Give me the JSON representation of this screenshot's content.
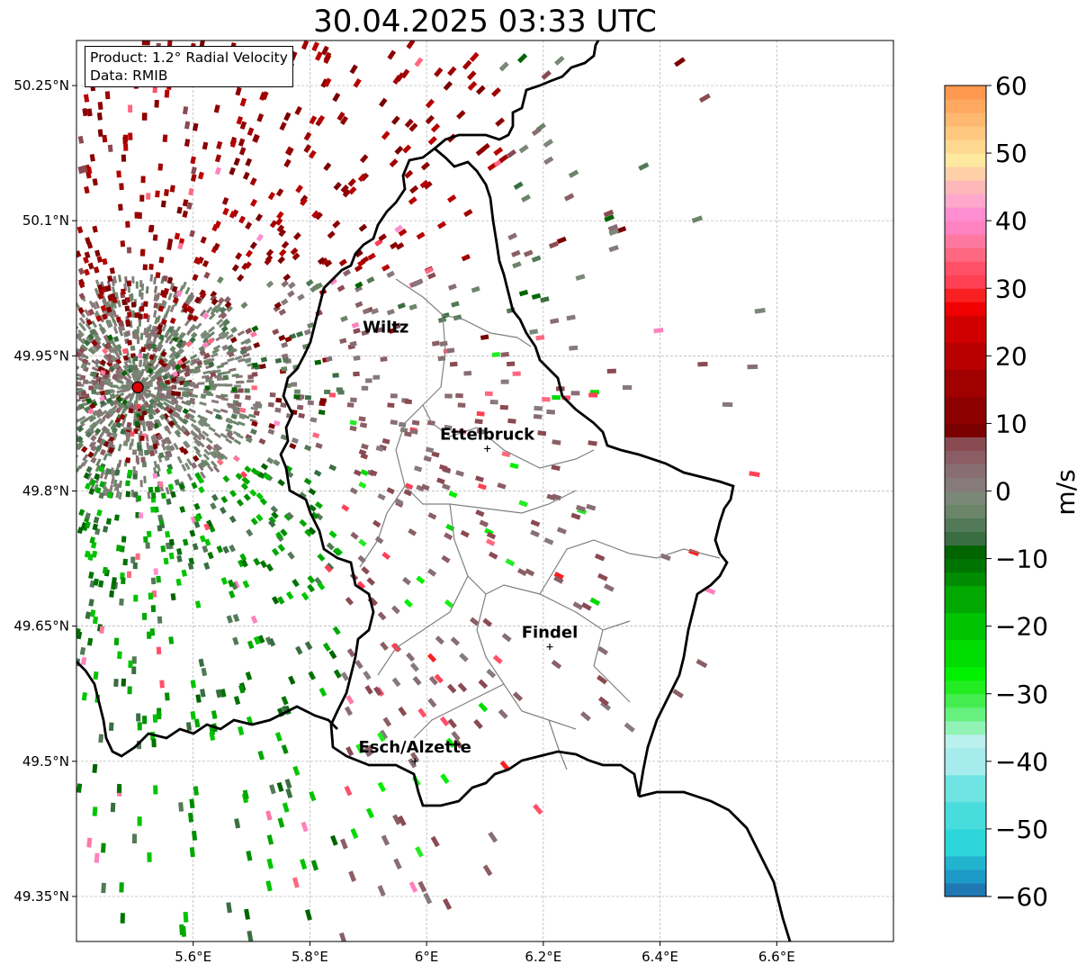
{
  "title": "30.04.2025 03:33 UTC",
  "info": {
    "product": "Product: 1.2° Radial Velocity",
    "source": "Data: RMIB"
  },
  "map": {
    "lon_range": [
      5.4,
      6.8
    ],
    "lat_range": [
      49.3,
      50.3
    ],
    "lon_ticks": [
      {
        "value": 5.6,
        "label": "5.6°E"
      },
      {
        "value": 5.8,
        "label": "5.8°E"
      },
      {
        "value": 6.0,
        "label": "6°E"
      },
      {
        "value": 6.2,
        "label": "6.2°E"
      },
      {
        "value": 6.4,
        "label": "6.4°E"
      },
      {
        "value": 6.6,
        "label": "6.6°E"
      }
    ],
    "lat_ticks": [
      {
        "value": 50.25,
        "label": "50.25°N"
      },
      {
        "value": 50.1,
        "label": "50.1°N"
      },
      {
        "value": 49.95,
        "label": "49.95°N"
      },
      {
        "value": 49.8,
        "label": "49.8°N"
      },
      {
        "value": 49.65,
        "label": "49.65°N"
      },
      {
        "value": 49.5,
        "label": "49.5°N"
      },
      {
        "value": 49.35,
        "label": "49.35°N"
      }
    ],
    "radar_site": {
      "lon": 5.505,
      "lat": 49.915
    },
    "cities": [
      {
        "name": "Wiltz",
        "lon": 5.93,
        "lat": 49.966,
        "show_marker": false
      },
      {
        "name": "Ettelbruck",
        "lon": 6.104,
        "lat": 49.847,
        "show_marker": true
      },
      {
        "name": "Findel",
        "lon": 6.211,
        "lat": 49.627,
        "show_marker": true
      },
      {
        "name": "Esch/Alzette",
        "lon": 5.98,
        "lat": 49.5,
        "show_marker": true
      }
    ]
  },
  "colorbar": {
    "label": "m/s",
    "range": [
      -60,
      60
    ],
    "ticks": [
      {
        "value": 60,
        "label": "60"
      },
      {
        "value": 50,
        "label": "50"
      },
      {
        "value": 40,
        "label": "40"
      },
      {
        "value": 30,
        "label": "30"
      },
      {
        "value": 20,
        "label": "20"
      },
      {
        "value": 10,
        "label": "10"
      },
      {
        "value": 0,
        "label": "0"
      },
      {
        "value": -10,
        "label": "−10"
      },
      {
        "value": -20,
        "label": "−20"
      },
      {
        "value": -30,
        "label": "−30"
      },
      {
        "value": -40,
        "label": "−40"
      },
      {
        "value": -50,
        "label": "−50"
      },
      {
        "value": -60,
        "label": "−60"
      }
    ],
    "stops": [
      {
        "from": -60,
        "to": -58,
        "color": "#1f77b4"
      },
      {
        "from": -58,
        "to": -56,
        "color": "#1e9ac8"
      },
      {
        "from": -56,
        "to": -54,
        "color": "#22b3cf"
      },
      {
        "from": -54,
        "to": -50,
        "color": "#2cd6da"
      },
      {
        "from": -50,
        "to": -46,
        "color": "#48dcdc"
      },
      {
        "from": -46,
        "to": -42,
        "color": "#6fe2e2"
      },
      {
        "from": -42,
        "to": -38,
        "color": "#a6ecec"
      },
      {
        "from": -38,
        "to": -36,
        "color": "#baf0ee"
      },
      {
        "from": -36,
        "to": -34,
        "color": "#90f2b4"
      },
      {
        "from": -34,
        "to": -32,
        "color": "#66f07e"
      },
      {
        "from": -32,
        "to": -30,
        "color": "#45ee50"
      },
      {
        "from": -30,
        "to": -28,
        "color": "#22ec22"
      },
      {
        "from": -28,
        "to": -26,
        "color": "#00f000"
      },
      {
        "from": -26,
        "to": -22,
        "color": "#00dc00"
      },
      {
        "from": -22,
        "to": -18,
        "color": "#00c400"
      },
      {
        "from": -18,
        "to": -14,
        "color": "#00a800"
      },
      {
        "from": -14,
        "to": -12,
        "color": "#008c00"
      },
      {
        "from": -12,
        "to": -10,
        "color": "#007400"
      },
      {
        "from": -10,
        "to": -8,
        "color": "#006400"
      },
      {
        "from": -8,
        "to": -6,
        "color": "#3a6e42"
      },
      {
        "from": -6,
        "to": -4,
        "color": "#537a58"
      },
      {
        "from": -4,
        "to": -2,
        "color": "#6a8568"
      },
      {
        "from": -2,
        "to": 0,
        "color": "#7a8878"
      },
      {
        "from": 0,
        "to": 2,
        "color": "#877a7a"
      },
      {
        "from": 2,
        "to": 4,
        "color": "#886e72"
      },
      {
        "from": 4,
        "to": 6,
        "color": "#8a5e64"
      },
      {
        "from": 6,
        "to": 8,
        "color": "#8a4a52"
      },
      {
        "from": 8,
        "to": 10,
        "color": "#7a0000"
      },
      {
        "from": 10,
        "to": 14,
        "color": "#8c0000"
      },
      {
        "from": 14,
        "to": 18,
        "color": "#a00000"
      },
      {
        "from": 18,
        "to": 22,
        "color": "#b80000"
      },
      {
        "from": 22,
        "to": 26,
        "color": "#d00000"
      },
      {
        "from": 26,
        "to": 28,
        "color": "#f00000"
      },
      {
        "from": 28,
        "to": 30,
        "color": "#f82020"
      },
      {
        "from": 30,
        "to": 32,
        "color": "#ff4055"
      },
      {
        "from": 32,
        "to": 34,
        "color": "#ff5068"
      },
      {
        "from": 34,
        "to": 36,
        "color": "#ff6880"
      },
      {
        "from": 36,
        "to": 38,
        "color": "#ff78a0"
      },
      {
        "from": 38,
        "to": 40,
        "color": "#ff82c0"
      },
      {
        "from": 40,
        "to": 42,
        "color": "#ff8ed0"
      },
      {
        "from": 42,
        "to": 44,
        "color": "#ffa8cc"
      },
      {
        "from": 44,
        "to": 46,
        "color": "#ffb8b8"
      },
      {
        "from": 46,
        "to": 48,
        "color": "#ffd0a8"
      },
      {
        "from": 48,
        "to": 50,
        "color": "#ffe8a0"
      },
      {
        "from": 50,
        "to": 52,
        "color": "#ffd890"
      },
      {
        "from": 52,
        "to": 54,
        "color": "#ffc880"
      },
      {
        "from": 54,
        "to": 56,
        "color": "#ffb870"
      },
      {
        "from": 56,
        "to": 58,
        "color": "#ffa860"
      },
      {
        "from": 58,
        "to": 60,
        "color": "#ff9850"
      }
    ]
  }
}
